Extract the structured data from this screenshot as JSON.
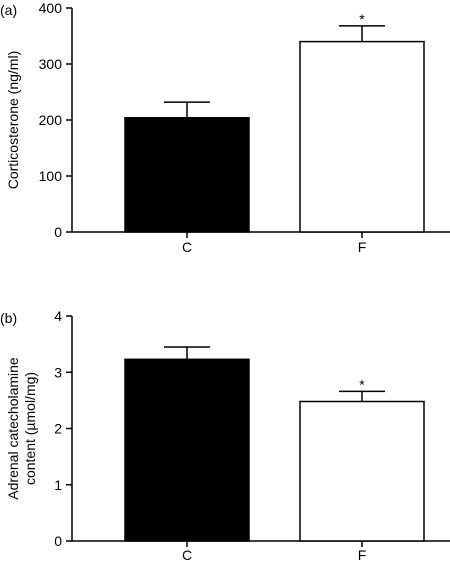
{
  "chart_data": [
    {
      "type": "bar",
      "panel": "(a)",
      "categories": [
        "C",
        "F"
      ],
      "values": [
        204,
        340
      ],
      "errors": [
        28,
        28
      ],
      "significance": [
        "",
        "*"
      ],
      "ylabel": "Corticosterone (ng/ml)",
      "ylim": [
        0,
        400
      ],
      "yticks": [
        0,
        100,
        200,
        300,
        400
      ],
      "fills": [
        "#000000",
        "#ffffff"
      ],
      "grid": false
    },
    {
      "type": "bar",
      "panel": "(b)",
      "categories": [
        "C",
        "F"
      ],
      "values": [
        3.23,
        2.48
      ],
      "errors": [
        0.22,
        0.18
      ],
      "significance": [
        "",
        "*"
      ],
      "ylabel": [
        "Adrenal catecholamine",
        "content (µmol/mg)"
      ],
      "ylim": [
        0,
        4
      ],
      "yticks": [
        0,
        1,
        2,
        3,
        4
      ],
      "fills": [
        "#000000",
        "#ffffff"
      ],
      "grid": false
    }
  ]
}
